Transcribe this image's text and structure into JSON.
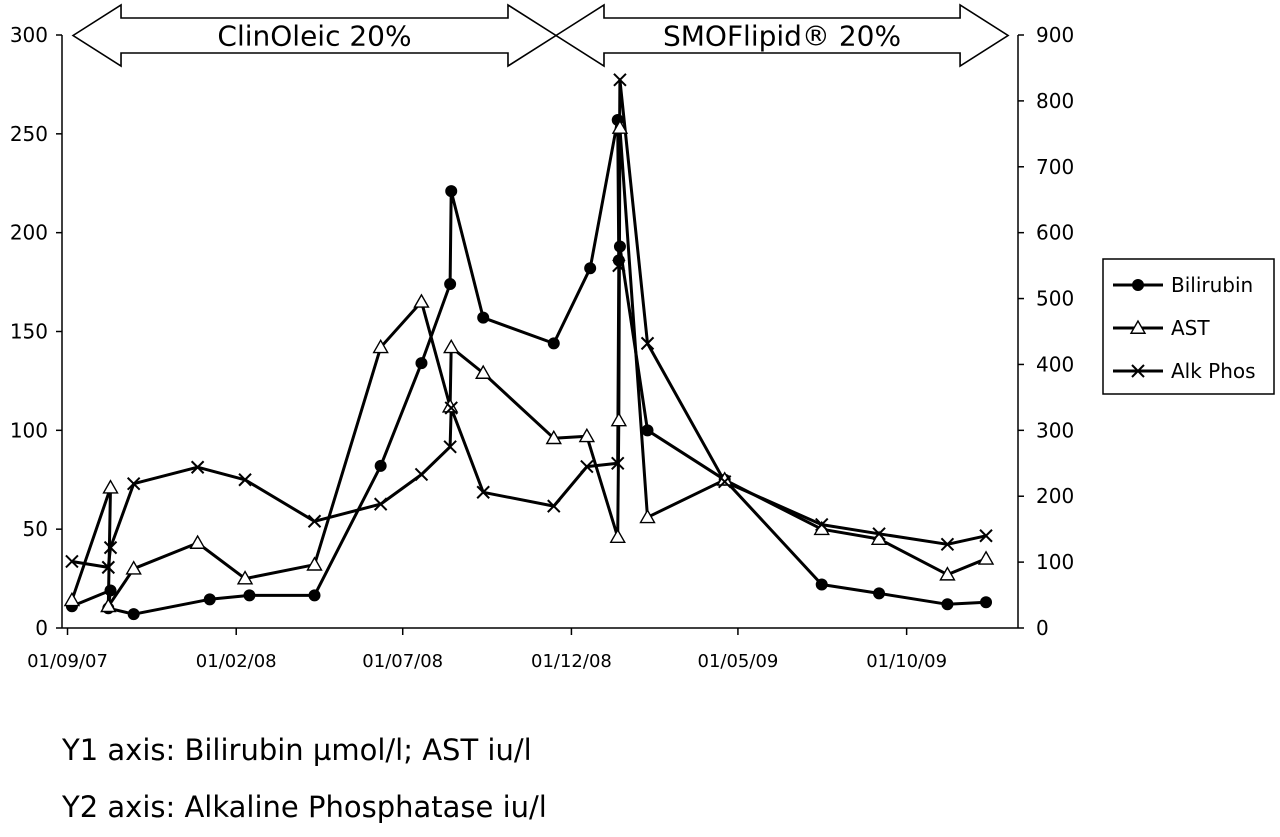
{
  "chart_data": {
    "type": "line",
    "y1_ticks": [
      0,
      50,
      100,
      150,
      200,
      250,
      300
    ],
    "y2_ticks": [
      0,
      100,
      200,
      300,
      400,
      500,
      600,
      700,
      800,
      900
    ],
    "ylim_left": [
      0,
      300
    ],
    "ylim_right": [
      0,
      900
    ],
    "xlim": [
      "2007-08-27",
      "2010-01-10"
    ],
    "x_ticks": [
      {
        "date": "2007-09-01",
        "label": "01/09/07"
      },
      {
        "date": "2008-02-01",
        "label": "01/02/08"
      },
      {
        "date": "2008-07-01",
        "label": "01/07/08"
      },
      {
        "date": "2008-12-01",
        "label": "01/12/08"
      },
      {
        "date": "2009-05-01",
        "label": "01/05/09"
      },
      {
        "date": "2009-10-01",
        "label": "01/10/09"
      }
    ],
    "grid": false,
    "legend_position": "right",
    "periods": [
      {
        "label": "ClinOleic 20%",
        "start": "2007-09-06",
        "end": "2008-11-17"
      },
      {
        "label": "SMOFlipid® 20%",
        "start": "2008-11-17",
        "end": "2010-01-01"
      }
    ],
    "series": [
      {
        "name": "Bilirubin",
        "axis": "left",
        "marker": "circle",
        "x": [
          "2007-09-05",
          "2007-10-10",
          "2007-10-08",
          "2007-10-31",
          "2008-01-08",
          "2008-02-13",
          "2008-04-12",
          "2008-06-11",
          "2008-07-18",
          "2008-08-13",
          "2008-08-14",
          "2008-09-12",
          "2008-11-15",
          "2008-12-18",
          "2009-01-12",
          "2009-01-13",
          "2009-01-14",
          "2009-02-08",
          "2009-04-19",
          "2009-07-16",
          "2009-09-06",
          "2009-11-07",
          "2009-12-12"
        ],
        "y": [
          11,
          19,
          10,
          7,
          14.5,
          16.5,
          16.5,
          82,
          134,
          174,
          221,
          157,
          144,
          182,
          257,
          186,
          193,
          100,
          75,
          22,
          17.5,
          12,
          13
        ]
      },
      {
        "name": "AST",
        "axis": "left",
        "marker": "triangle",
        "x": [
          "2007-09-05",
          "2007-10-10",
          "2007-10-08",
          "2007-10-31",
          "2007-12-28",
          "2008-02-09",
          "2008-04-12",
          "2008-06-11",
          "2008-07-18",
          "2008-08-13",
          "2008-08-14",
          "2008-09-12",
          "2008-11-15",
          "2008-12-15",
          "2009-01-12",
          "2009-01-13",
          "2009-01-14",
          "2009-02-08",
          "2009-04-19",
          "2009-07-16",
          "2009-09-06",
          "2009-11-07",
          "2009-12-12"
        ],
        "y": [
          14,
          71,
          11,
          30,
          43,
          25,
          32,
          142,
          165,
          112,
          142,
          129,
          96,
          97,
          46,
          105,
          253,
          56,
          75,
          50,
          45,
          27,
          35
        ]
      },
      {
        "name": "Alk Phos",
        "axis": "right",
        "marker": "x",
        "x": [
          "2007-09-05",
          "2007-10-08",
          "2007-10-10",
          "2007-10-31",
          "2007-12-28",
          "2008-02-09",
          "2008-04-12",
          "2008-06-11",
          "2008-07-18",
          "2008-08-13",
          "2008-08-14",
          "2008-09-12",
          "2008-11-15",
          "2008-12-15",
          "2009-01-12",
          "2009-01-13",
          "2009-01-14",
          "2009-02-08",
          "2009-04-19",
          "2009-07-16",
          "2009-09-06",
          "2009-11-07",
          "2009-12-12"
        ],
        "y": [
          101,
          92,
          122,
          219,
          244,
          225,
          162,
          188,
          233,
          275,
          334,
          206,
          185,
          245,
          250,
          550,
          832,
          432,
          222,
          157,
          143,
          127,
          140
        ]
      }
    ]
  },
  "captions": {
    "y1": "Y1 axis: Bilirubin µmol/l; AST iu/l",
    "y2": "Y2 axis: Alkaline Phosphatase iu/l"
  }
}
